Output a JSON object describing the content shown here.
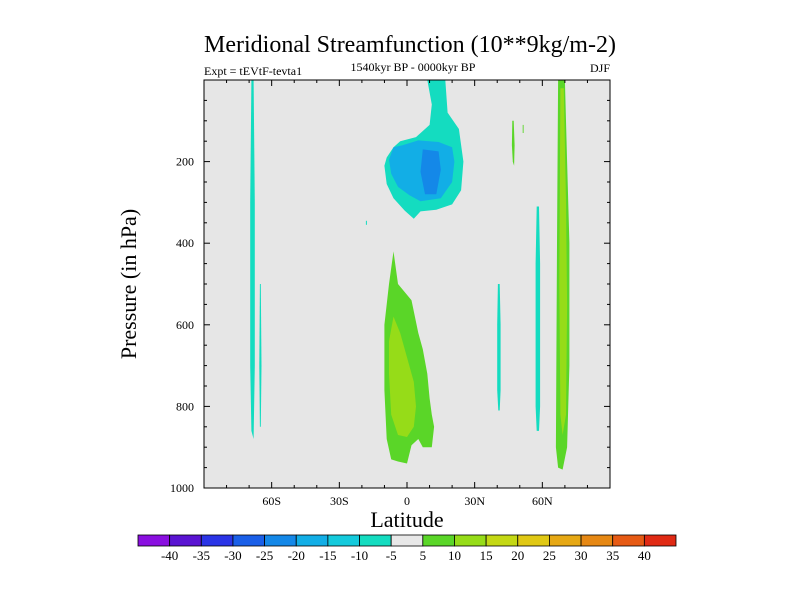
{
  "chart_data": {
    "type": "contour",
    "title": "Meridional Streamfunction (10**9kg/m-2)",
    "left_label": "Expt = tEVtF-tevta1",
    "center_label": "1540kyr BP - 0000kyr BP",
    "right_label": "DJF",
    "xlabel": "Latitude",
    "ylabel": "Pressure (in hPa)",
    "xlim": [
      -90,
      90
    ],
    "ylim": [
      1000,
      0
    ],
    "x_ticks": [
      {
        "value": -60,
        "label": "60S"
      },
      {
        "value": -30,
        "label": "30S"
      },
      {
        "value": 0,
        "label": "0"
      },
      {
        "value": 30,
        "label": "30N"
      },
      {
        "value": 60,
        "label": "60N"
      }
    ],
    "y_ticks": [
      {
        "value": 200,
        "label": "200"
      },
      {
        "value": 400,
        "label": "400"
      },
      {
        "value": 600,
        "label": "600"
      },
      {
        "value": 800,
        "label": "800"
      },
      {
        "value": 1000,
        "label": "1000"
      }
    ],
    "background_color": "#e6e6e6",
    "levels": [
      -40,
      -35,
      -30,
      -25,
      -20,
      -15,
      -10,
      -5,
      5,
      10,
      15,
      20,
      25,
      30,
      35,
      40
    ],
    "colorbar_labels": [
      "-40",
      "-35",
      "-30",
      "-25",
      "-20",
      "-15",
      "-10",
      "-5",
      "5",
      "10",
      "15",
      "20",
      "25",
      "30",
      "35",
      "40"
    ],
    "colors": [
      "#8a0fe0",
      "#5a14d2",
      "#2a34e6",
      "#1a5fe8",
      "#1488e8",
      "#12aee6",
      "#14cadc",
      "#14dcc0",
      "#e8e8e8",
      "#5ad628",
      "#96dc18",
      "#c4d814",
      "#e0c814",
      "#e6a814",
      "#e68814",
      "#e65a14",
      "#e02a14"
    ],
    "regions": [
      {
        "name": "sh-polar-negative-streak",
        "color": "#14dcc0",
        "points": [
          [
            -69,
            0
          ],
          [
            -68,
            0
          ],
          [
            -67.5,
            300
          ],
          [
            -67.5,
            700
          ],
          [
            -68,
            880
          ],
          [
            -69,
            860
          ],
          [
            -69.5,
            700
          ],
          [
            -69.5,
            300
          ]
        ]
      },
      {
        "name": "sh-polar-negative-streak-2",
        "color": "#14dcc0",
        "points": [
          [
            -65.2,
            500
          ],
          [
            -64.8,
            500
          ],
          [
            -64.5,
            700
          ],
          [
            -64.8,
            850
          ],
          [
            -65.2,
            850
          ],
          [
            -65.5,
            700
          ]
        ]
      },
      {
        "name": "tropical-upper-negative-outer",
        "color": "#14dcc0",
        "points": [
          [
            9,
            0
          ],
          [
            17,
            0
          ],
          [
            18,
            80
          ],
          [
            23,
            120
          ],
          [
            25,
            200
          ],
          [
            24,
            270
          ],
          [
            20,
            305
          ],
          [
            13,
            318
          ],
          [
            6,
            322
          ],
          [
            3,
            340
          ],
          [
            -1,
            320
          ],
          [
            -6,
            290
          ],
          [
            -9,
            255
          ],
          [
            -10,
            210
          ],
          [
            -9,
            190
          ],
          [
            -6,
            165
          ],
          [
            -3,
            150
          ],
          [
            4,
            140
          ],
          [
            10,
            110
          ],
          [
            11,
            60
          ]
        ]
      },
      {
        "name": "tropical-upper-negative-inner",
        "color": "#12aee6",
        "points": [
          [
            -6,
            165
          ],
          [
            -2,
            160
          ],
          [
            5,
            148
          ],
          [
            14,
            152
          ],
          [
            20,
            165
          ],
          [
            21,
            200
          ],
          [
            20,
            250
          ],
          [
            15,
            290
          ],
          [
            6,
            297
          ],
          [
            1,
            282
          ],
          [
            -4,
            262
          ],
          [
            -7,
            230
          ],
          [
            -8,
            195
          ]
        ]
      },
      {
        "name": "tropical-upper-negative-core",
        "color": "#1488e8",
        "points": [
          [
            7,
            170
          ],
          [
            14,
            175
          ],
          [
            15,
            220
          ],
          [
            13,
            280
          ],
          [
            8,
            280
          ],
          [
            6,
            225
          ]
        ]
      },
      {
        "name": "tropical-lower-positive-outer",
        "color": "#5ad628",
        "points": [
          [
            -6,
            420
          ],
          [
            -4,
            500
          ],
          [
            2,
            540
          ],
          [
            5,
            620
          ],
          [
            7,
            660
          ],
          [
            9,
            720
          ],
          [
            10,
            780
          ],
          [
            11,
            820
          ],
          [
            12,
            850
          ],
          [
            11,
            900
          ],
          [
            7,
            900
          ],
          [
            5,
            880
          ],
          [
            2,
            895
          ],
          [
            0,
            940
          ],
          [
            -4,
            935
          ],
          [
            -7,
            930
          ],
          [
            -9,
            880
          ],
          [
            -10,
            760
          ],
          [
            -10,
            600
          ],
          [
            -8,
            500
          ]
        ]
      },
      {
        "name": "tropical-lower-positive-inner",
        "color": "#96dc18",
        "points": [
          [
            -6,
            580
          ],
          [
            -3,
            620
          ],
          [
            0,
            680
          ],
          [
            3,
            740
          ],
          [
            4,
            800
          ],
          [
            3,
            850
          ],
          [
            0,
            875
          ],
          [
            -4,
            870
          ],
          [
            -7,
            820
          ],
          [
            -8,
            720
          ],
          [
            -8,
            640
          ]
        ]
      },
      {
        "name": "midlat-nh-negative-streak",
        "color": "#14dcc0",
        "points": [
          [
            40.3,
            500
          ],
          [
            41.1,
            500
          ],
          [
            41.5,
            600
          ],
          [
            41.5,
            760
          ],
          [
            41.1,
            810
          ],
          [
            40.5,
            810
          ],
          [
            40,
            760
          ],
          [
            40,
            600
          ]
        ]
      },
      {
        "name": "midlat-nh-negative-streak-2",
        "color": "#14dcc0",
        "points": [
          [
            57.5,
            310
          ],
          [
            58.5,
            310
          ],
          [
            59,
            450
          ],
          [
            59,
            800
          ],
          [
            58.5,
            860
          ],
          [
            57.5,
            860
          ],
          [
            57,
            800
          ],
          [
            57,
            450
          ]
        ]
      },
      {
        "name": "nh-upper-positive-streak",
        "color": "#5ad628",
        "points": [
          [
            46.7,
            100
          ],
          [
            47.3,
            100
          ],
          [
            47.7,
            160
          ],
          [
            47.5,
            210
          ],
          [
            46.9,
            200
          ],
          [
            46.5,
            160
          ]
        ]
      },
      {
        "name": "nh-upper-positive-dot",
        "color": "#5ad628",
        "points": [
          [
            51.3,
            110
          ],
          [
            51.7,
            110
          ],
          [
            51.7,
            130
          ],
          [
            51.3,
            130
          ]
        ]
      },
      {
        "name": "nh-polar-positive-outer",
        "color": "#5ad628",
        "points": [
          [
            67,
            0
          ],
          [
            70,
            0
          ],
          [
            71,
            200
          ],
          [
            72,
            400
          ],
          [
            72,
            700
          ],
          [
            71,
            900
          ],
          [
            69,
            955
          ],
          [
            67,
            950
          ],
          [
            66,
            900
          ],
          [
            66.5,
            400
          ]
        ]
      },
      {
        "name": "nh-polar-positive-inner",
        "color": "#96dc18",
        "points": [
          [
            68,
            20
          ],
          [
            69.5,
            20
          ],
          [
            70.5,
            300
          ],
          [
            71,
            550
          ],
          [
            70.5,
            820
          ],
          [
            69,
            870
          ],
          [
            68,
            820
          ],
          [
            67.5,
            500
          ]
        ]
      },
      {
        "name": "sh-subtropic-dot",
        "color": "#14dcc0",
        "points": [
          [
            -18.2,
            345
          ],
          [
            -17.8,
            345
          ],
          [
            -17.8,
            355
          ],
          [
            -18.2,
            355
          ]
        ]
      }
    ]
  }
}
